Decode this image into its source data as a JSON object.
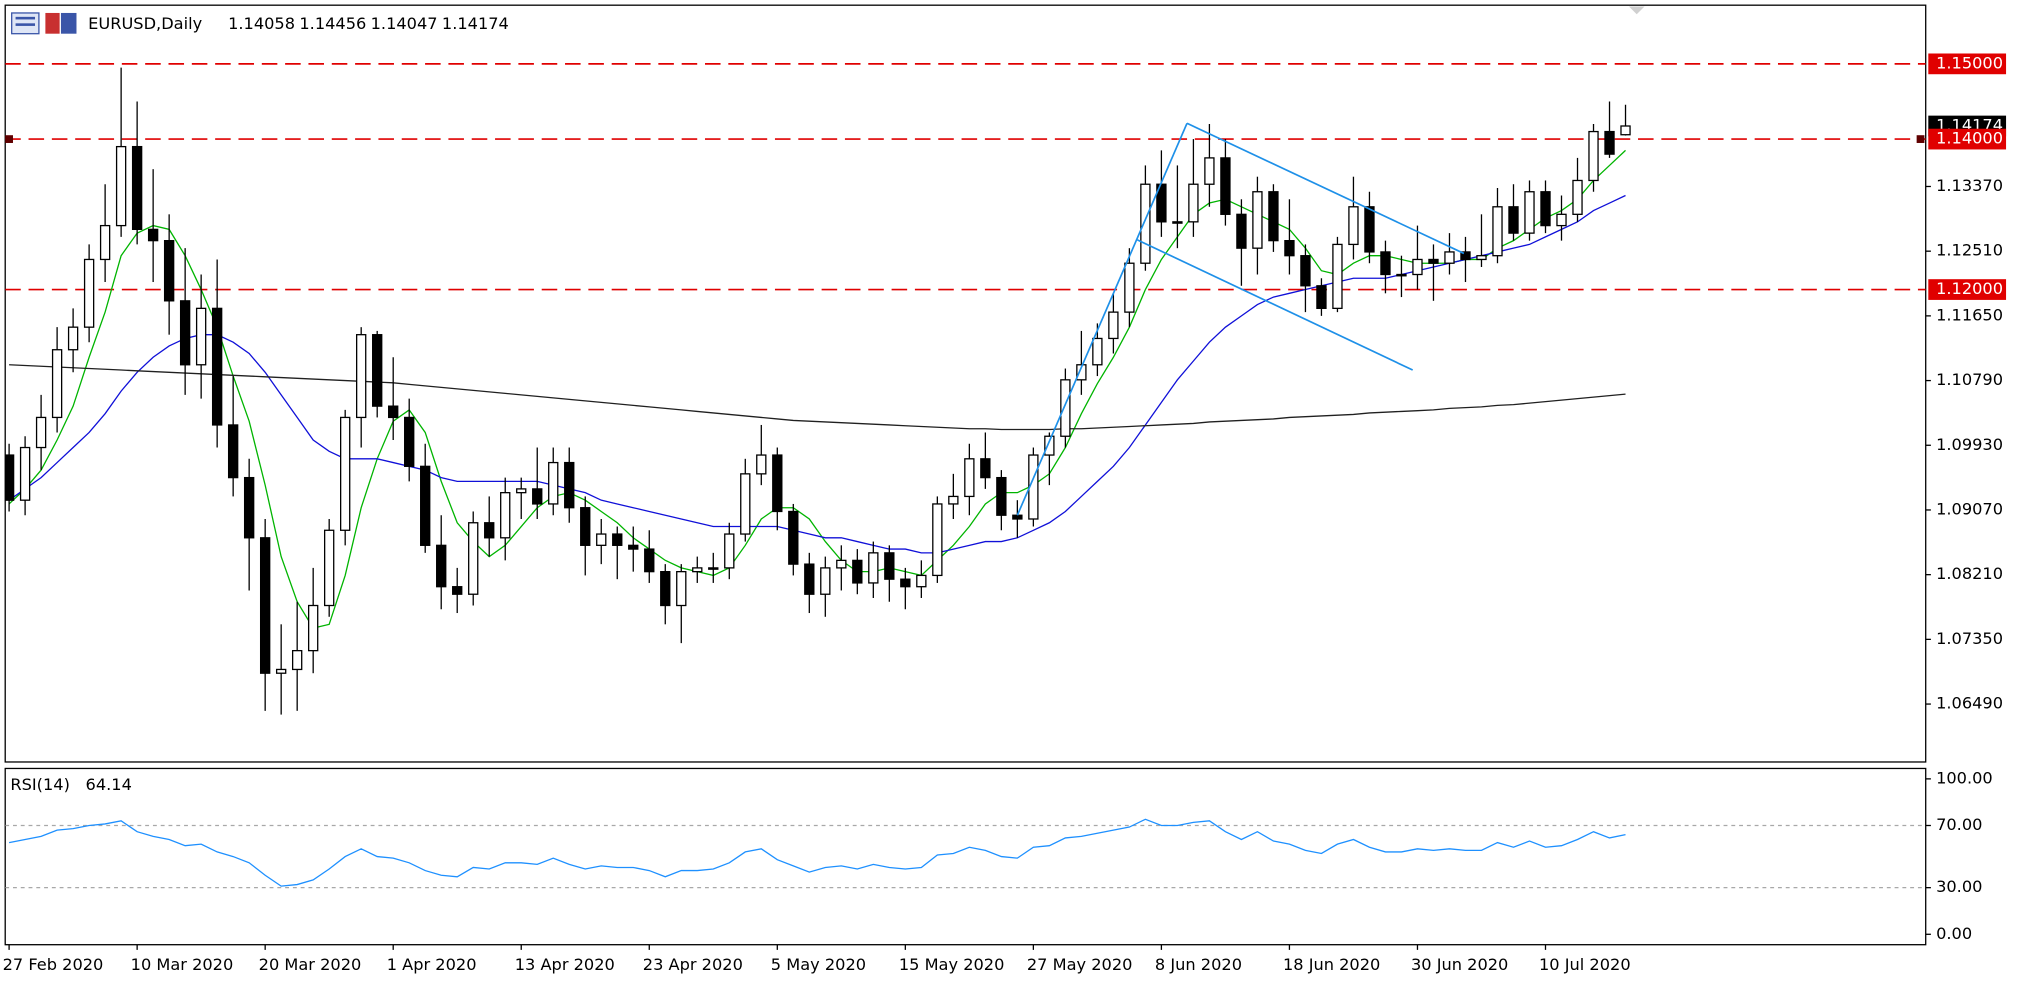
{
  "chart_data": {
    "type": "candlestick",
    "title": "EURUSD,Daily",
    "categories": [
      "27 Feb 2020",
      null,
      null,
      null,
      null,
      null,
      null,
      null,
      "10 Mar 2020",
      null,
      null,
      null,
      null,
      null,
      null,
      null,
      "20 Mar 2020",
      null,
      null,
      null,
      null,
      null,
      null,
      null,
      "1 Apr 2020",
      null,
      null,
      null,
      null,
      null,
      null,
      null,
      "13 Apr 2020",
      null,
      null,
      null,
      null,
      null,
      null,
      null,
      "23 Apr 2020",
      null,
      null,
      null,
      null,
      null,
      null,
      null,
      "5 May 2020",
      null,
      null,
      null,
      null,
      null,
      null,
      null,
      "15 May 2020",
      null,
      null,
      null,
      null,
      null,
      null,
      null,
      "27 May 2020",
      null,
      null,
      null,
      null,
      null,
      null,
      null,
      "8 Jun 2020",
      null,
      null,
      null,
      null,
      null,
      null,
      null,
      "18 Jun 2020",
      null,
      null,
      null,
      null,
      null,
      null,
      null,
      "30 Jun 2020",
      null,
      null,
      null,
      null,
      null,
      null,
      null,
      "10 Jul 2020",
      null,
      null,
      null,
      null,
      null
    ],
    "candles": [
      [
        1.098,
        1.0995,
        1.0905,
        1.092
      ],
      [
        1.092,
        1.1005,
        1.09,
        1.099
      ],
      [
        1.099,
        1.106,
        1.096,
        1.103
      ],
      [
        1.103,
        1.115,
        1.101,
        1.112
      ],
      [
        1.112,
        1.1175,
        1.109,
        1.115
      ],
      [
        1.115,
        1.126,
        1.113,
        1.124
      ],
      [
        1.124,
        1.134,
        1.121,
        1.1285
      ],
      [
        1.1285,
        1.1495,
        1.127,
        1.139
      ],
      [
        1.139,
        1.145,
        1.126,
        1.128
      ],
      [
        1.128,
        1.136,
        1.121,
        1.1265
      ],
      [
        1.1265,
        1.13,
        1.114,
        1.1185
      ],
      [
        1.1185,
        1.1255,
        1.106,
        1.11
      ],
      [
        1.11,
        1.122,
        1.1055,
        1.1175
      ],
      [
        1.1175,
        1.124,
        1.099,
        1.102
      ],
      [
        1.102,
        1.1085,
        1.0925,
        1.095
      ],
      [
        1.095,
        1.0975,
        1.08,
        1.087
      ],
      [
        1.087,
        1.0895,
        1.064,
        1.069
      ],
      [
        1.069,
        1.0755,
        1.0635,
        1.0695
      ],
      [
        1.0695,
        1.0785,
        1.064,
        1.072
      ],
      [
        1.072,
        1.083,
        1.069,
        1.078
      ],
      [
        1.078,
        1.0895,
        1.0765,
        1.088
      ],
      [
        1.088,
        1.104,
        1.086,
        1.103
      ],
      [
        1.103,
        1.115,
        1.099,
        1.114
      ],
      [
        1.114,
        1.1145,
        1.103,
        1.1045
      ],
      [
        1.1045,
        1.111,
        1.1,
        1.103
      ],
      [
        1.103,
        1.1055,
        1.0945,
        1.0965
      ],
      [
        1.0965,
        1.0995,
        1.085,
        1.086
      ],
      [
        1.086,
        1.09,
        1.0775,
        1.0805
      ],
      [
        1.0805,
        1.083,
        1.077,
        1.0795
      ],
      [
        1.0795,
        1.0905,
        1.078,
        1.089
      ],
      [
        1.089,
        1.0925,
        1.0845,
        1.087
      ],
      [
        1.087,
        1.095,
        1.084,
        1.093
      ],
      [
        1.093,
        1.095,
        1.0895,
        1.0935
      ],
      [
        1.0935,
        1.099,
        1.0895,
        1.0915
      ],
      [
        1.0915,
        1.099,
        1.09,
        1.097
      ],
      [
        1.097,
        1.099,
        1.089,
        1.091
      ],
      [
        1.091,
        1.0925,
        1.082,
        1.086
      ],
      [
        1.086,
        1.0895,
        1.0835,
        1.0875
      ],
      [
        1.0875,
        1.0885,
        1.0815,
        1.086
      ],
      [
        1.086,
        1.0885,
        1.0825,
        1.0855
      ],
      [
        1.0855,
        1.088,
        1.081,
        1.0825
      ],
      [
        1.0825,
        1.0835,
        1.0755,
        1.078
      ],
      [
        1.078,
        1.0835,
        1.073,
        1.0825
      ],
      [
        1.0825,
        1.0845,
        1.081,
        1.083
      ],
      [
        1.083,
        1.085,
        1.081,
        1.083
      ],
      [
        1.083,
        1.089,
        1.0815,
        1.0875
      ],
      [
        1.0875,
        1.0975,
        1.0865,
        1.0955
      ],
      [
        1.0955,
        1.102,
        1.094,
        1.098
      ],
      [
        1.098,
        1.099,
        1.088,
        1.0905
      ],
      [
        1.0905,
        1.0915,
        1.082,
        1.0835
      ],
      [
        1.0835,
        1.085,
        1.077,
        1.0795
      ],
      [
        1.0795,
        1.0845,
        1.0765,
        1.083
      ],
      [
        1.083,
        1.086,
        1.08,
        1.084
      ],
      [
        1.084,
        1.0855,
        1.0795,
        1.081
      ],
      [
        1.081,
        1.0865,
        1.079,
        1.085
      ],
      [
        1.085,
        1.086,
        1.0785,
        1.0815
      ],
      [
        1.0815,
        1.083,
        1.0775,
        1.0805
      ],
      [
        1.0805,
        1.084,
        1.079,
        1.082
      ],
      [
        1.082,
        1.0925,
        1.081,
        1.0915
      ],
      [
        1.0915,
        1.0955,
        1.0895,
        1.0925
      ],
      [
        1.0925,
        1.0995,
        1.09,
        1.0975
      ],
      [
        1.0975,
        1.101,
        1.0935,
        1.095
      ],
      [
        1.095,
        1.096,
        1.088,
        1.09
      ],
      [
        1.09,
        1.092,
        1.087,
        1.0895
      ],
      [
        1.0895,
        1.099,
        1.0885,
        1.098
      ],
      [
        1.098,
        1.101,
        1.094,
        1.1005
      ],
      [
        1.1005,
        1.1095,
        1.099,
        1.108
      ],
      [
        1.108,
        1.1145,
        1.106,
        1.11
      ],
      [
        1.11,
        1.1155,
        1.1085,
        1.1135
      ],
      [
        1.1135,
        1.1195,
        1.1115,
        1.117
      ],
      [
        1.117,
        1.1255,
        1.115,
        1.1235
      ],
      [
        1.1235,
        1.1365,
        1.1225,
        1.134
      ],
      [
        1.134,
        1.1385,
        1.127,
        1.129
      ],
      [
        1.129,
        1.1365,
        1.1255,
        1.129
      ],
      [
        1.129,
        1.14,
        1.127,
        1.134
      ],
      [
        1.134,
        1.142,
        1.131,
        1.1375
      ],
      [
        1.1375,
        1.14,
        1.1285,
        1.13
      ],
      [
        1.13,
        1.132,
        1.1205,
        1.1255
      ],
      [
        1.1255,
        1.135,
        1.122,
        1.133
      ],
      [
        1.133,
        1.134,
        1.125,
        1.1265
      ],
      [
        1.1265,
        1.132,
        1.122,
        1.1245
      ],
      [
        1.1245,
        1.126,
        1.117,
        1.1205
      ],
      [
        1.1205,
        1.1215,
        1.1165,
        1.1175
      ],
      [
        1.1175,
        1.127,
        1.117,
        1.126
      ],
      [
        1.126,
        1.135,
        1.124,
        1.131
      ],
      [
        1.131,
        1.133,
        1.1235,
        1.125
      ],
      [
        1.125,
        1.1265,
        1.1195,
        1.122
      ],
      [
        1.122,
        1.1245,
        1.119,
        1.122
      ],
      [
        1.122,
        1.1285,
        1.12,
        1.124
      ],
      [
        1.124,
        1.126,
        1.1185,
        1.1235
      ],
      [
        1.1235,
        1.1275,
        1.122,
        1.125
      ],
      [
        1.125,
        1.127,
        1.121,
        1.124
      ],
      [
        1.124,
        1.13,
        1.123,
        1.1245
      ],
      [
        1.1245,
        1.1335,
        1.1235,
        1.131
      ],
      [
        1.131,
        1.134,
        1.1265,
        1.1275
      ],
      [
        1.1275,
        1.1345,
        1.1265,
        1.133
      ],
      [
        1.133,
        1.1345,
        1.1275,
        1.1285
      ],
      [
        1.1285,
        1.1325,
        1.1265,
        1.13
      ],
      [
        1.13,
        1.1375,
        1.129,
        1.1345
      ],
      [
        1.1345,
        1.142,
        1.133,
        1.141
      ],
      [
        1.141,
        1.145,
        1.1375,
        1.138
      ],
      [
        1.14058,
        1.14456,
        1.14047,
        1.14174
      ]
    ],
    "up_color": "#ffffff",
    "down_color": "#000000",
    "series": [
      {
        "color": "#00b400",
        "values": [
          1.0915,
          1.0935,
          1.096,
          1.1,
          1.1045,
          1.111,
          1.117,
          1.1245,
          1.1275,
          1.1285,
          1.128,
          1.1245,
          1.12,
          1.115,
          1.1085,
          1.1025,
          1.094,
          1.0845,
          1.0785,
          1.075,
          1.0755,
          1.082,
          1.091,
          1.0975,
          1.1025,
          1.104,
          1.101,
          1.0945,
          1.089,
          1.0865,
          1.0845,
          1.086,
          1.0885,
          1.091,
          1.0925,
          1.093,
          1.092,
          1.0905,
          1.089,
          1.087,
          1.0855,
          1.084,
          1.083,
          1.0825,
          1.082,
          1.083,
          1.086,
          1.0895,
          1.091,
          1.091,
          1.0895,
          1.0865,
          1.084,
          1.0825,
          1.0825,
          1.083,
          1.0825,
          1.082,
          1.084,
          1.086,
          1.0885,
          1.0915,
          1.093,
          1.093,
          1.094,
          1.0955,
          1.099,
          1.1035,
          1.1075,
          1.111,
          1.115,
          1.12,
          1.124,
          1.127,
          1.13,
          1.1315,
          1.132,
          1.131,
          1.13,
          1.129,
          1.128,
          1.1255,
          1.1225,
          1.122,
          1.1235,
          1.1245,
          1.1245,
          1.124,
          1.1235,
          1.1235,
          1.1235,
          1.124,
          1.124,
          1.1255,
          1.1265,
          1.128,
          1.1295,
          1.1305,
          1.132,
          1.1345,
          1.1365,
          1.1385
        ]
      },
      {
        "color": "#1010d8",
        "values": [
          1.092,
          1.0935,
          1.095,
          1.097,
          1.099,
          1.101,
          1.1035,
          1.1065,
          1.109,
          1.111,
          1.1125,
          1.1135,
          1.114,
          1.114,
          1.113,
          1.1115,
          1.109,
          1.106,
          1.103,
          1.1,
          1.0985,
          1.0975,
          1.0975,
          1.0975,
          1.097,
          1.0965,
          1.096,
          1.095,
          1.0945,
          1.0945,
          1.0945,
          1.0945,
          1.0945,
          1.0945,
          1.094,
          1.0935,
          1.093,
          1.092,
          1.0915,
          1.091,
          1.0905,
          1.09,
          1.0895,
          1.089,
          1.0885,
          1.0885,
          1.0885,
          1.0885,
          1.0885,
          1.088,
          1.0875,
          1.087,
          1.087,
          1.0865,
          1.086,
          1.0855,
          1.0855,
          1.085,
          1.085,
          1.0855,
          1.086,
          1.0865,
          1.0865,
          1.087,
          1.088,
          1.089,
          1.0905,
          1.0925,
          1.0945,
          1.0965,
          1.099,
          1.102,
          1.105,
          1.108,
          1.1105,
          1.113,
          1.115,
          1.1165,
          1.118,
          1.119,
          1.1195,
          1.12,
          1.1205,
          1.121,
          1.1215,
          1.1215,
          1.1215,
          1.122,
          1.1225,
          1.123,
          1.1235,
          1.124,
          1.1245,
          1.125,
          1.1255,
          1.126,
          1.127,
          1.128,
          1.129,
          1.1305,
          1.1315,
          1.1325
        ]
      },
      {
        "color": "#202020",
        "values": [
          1.11,
          1.1099,
          1.1098,
          1.1097,
          1.1096,
          1.1095,
          1.1094,
          1.1093,
          1.1092,
          1.1091,
          1.109,
          1.1089,
          1.1088,
          1.1087,
          1.1086,
          1.1085,
          1.1084,
          1.1083,
          1.1082,
          1.1081,
          1.108,
          1.1079,
          1.1078,
          1.1077,
          1.1076,
          1.1074,
          1.1072,
          1.107,
          1.1068,
          1.1066,
          1.1064,
          1.1062,
          1.106,
          1.1058,
          1.1056,
          1.1054,
          1.1052,
          1.105,
          1.1048,
          1.1046,
          1.1044,
          1.1042,
          1.104,
          1.1038,
          1.1036,
          1.1034,
          1.1032,
          1.103,
          1.1028,
          1.1026,
          1.1025,
          1.1024,
          1.1023,
          1.1022,
          1.1021,
          1.102,
          1.1019,
          1.1018,
          1.1017,
          1.1016,
          1.1015,
          1.1015,
          1.1014,
          1.1014,
          1.1014,
          1.1014,
          1.1015,
          1.1015,
          1.1016,
          1.1017,
          1.1018,
          1.1019,
          1.102,
          1.1021,
          1.1022,
          1.1024,
          1.1025,
          1.1026,
          1.1027,
          1.1028,
          1.103,
          1.1031,
          1.1032,
          1.1033,
          1.1034,
          1.1036,
          1.1037,
          1.1038,
          1.1039,
          1.104,
          1.1042,
          1.1043,
          1.1044,
          1.1046,
          1.1047,
          1.1049,
          1.1051,
          1.1053,
          1.1055,
          1.1057,
          1.1059,
          1.1061
        ]
      }
    ],
    "ylim": [
      1.0572,
      1.1578
    ],
    "yticks": [
      {
        "value": 1.0649,
        "label": "1.06490"
      },
      {
        "value": 1.0735,
        "label": "1.07350"
      },
      {
        "value": 1.0821,
        "label": "1.08210"
      },
      {
        "value": 1.0907,
        "label": "1.09070"
      },
      {
        "value": 1.0993,
        "label": "1.09930"
      },
      {
        "value": 1.1079,
        "label": "1.10790"
      },
      {
        "value": 1.1165,
        "label": "1.11650"
      },
      {
        "value": 1.1251,
        "label": "1.12510"
      },
      {
        "value": 1.1337,
        "label": "1.13370"
      }
    ],
    "levels": [
      {
        "value": 1.15,
        "label": "1.15000",
        "color": "#e00000"
      },
      {
        "value": 1.14,
        "label": "1.14000",
        "color": "#e00000"
      },
      {
        "value": 1.12,
        "label": "1.12000",
        "color": "#e00000"
      }
    ],
    "trendlines": [
      {
        "color": "#1e90e8",
        "x1": 63,
        "y1": 1.09,
        "x2": 73.6,
        "y2": 1.1421
      },
      {
        "color": "#1e90e8",
        "x1": 73.6,
        "y1": 1.1421,
        "x2": 90.9,
        "y2": 1.1248
      },
      {
        "color": "#1e90e8",
        "x1": 70.5,
        "y1": 1.1266,
        "x2": 87.7,
        "y2": 1.1093
      }
    ],
    "rsi": {
      "name": "RSI(14)",
      "color": "#1e90ff",
      "values": [
        59,
        61,
        63,
        67,
        68,
        70,
        71,
        73,
        66,
        63,
        61,
        57,
        58,
        53,
        50,
        46,
        38,
        31,
        32,
        35,
        42,
        50,
        55,
        50,
        49,
        46,
        41,
        38,
        37,
        43,
        42,
        46,
        46,
        45,
        49,
        45,
        42,
        44,
        43,
        43,
        41,
        37,
        41,
        41,
        42,
        46,
        53,
        55,
        48,
        44,
        40,
        43,
        44,
        42,
        45,
        43,
        42,
        43,
        51,
        52,
        56,
        54,
        50,
        49,
        56,
        57,
        62,
        63,
        65,
        67,
        69,
        74,
        70,
        70,
        72,
        73,
        66,
        61,
        66,
        60,
        58,
        54,
        52,
        58,
        61,
        56,
        53,
        53,
        55,
        54,
        55,
        54,
        54,
        59,
        56,
        60,
        56,
        57,
        61,
        66,
        62,
        64.14
      ],
      "ylim": [
        -6.7,
        106.7
      ],
      "yticks": [
        {
          "value": 0,
          "label": "0.00"
        },
        {
          "value": 30,
          "label": "30.00"
        },
        {
          "value": 70,
          "label": "70.00"
        },
        {
          "value": 100,
          "label": "100.00"
        }
      ],
      "levels": [
        30,
        70
      ]
    }
  }
}
